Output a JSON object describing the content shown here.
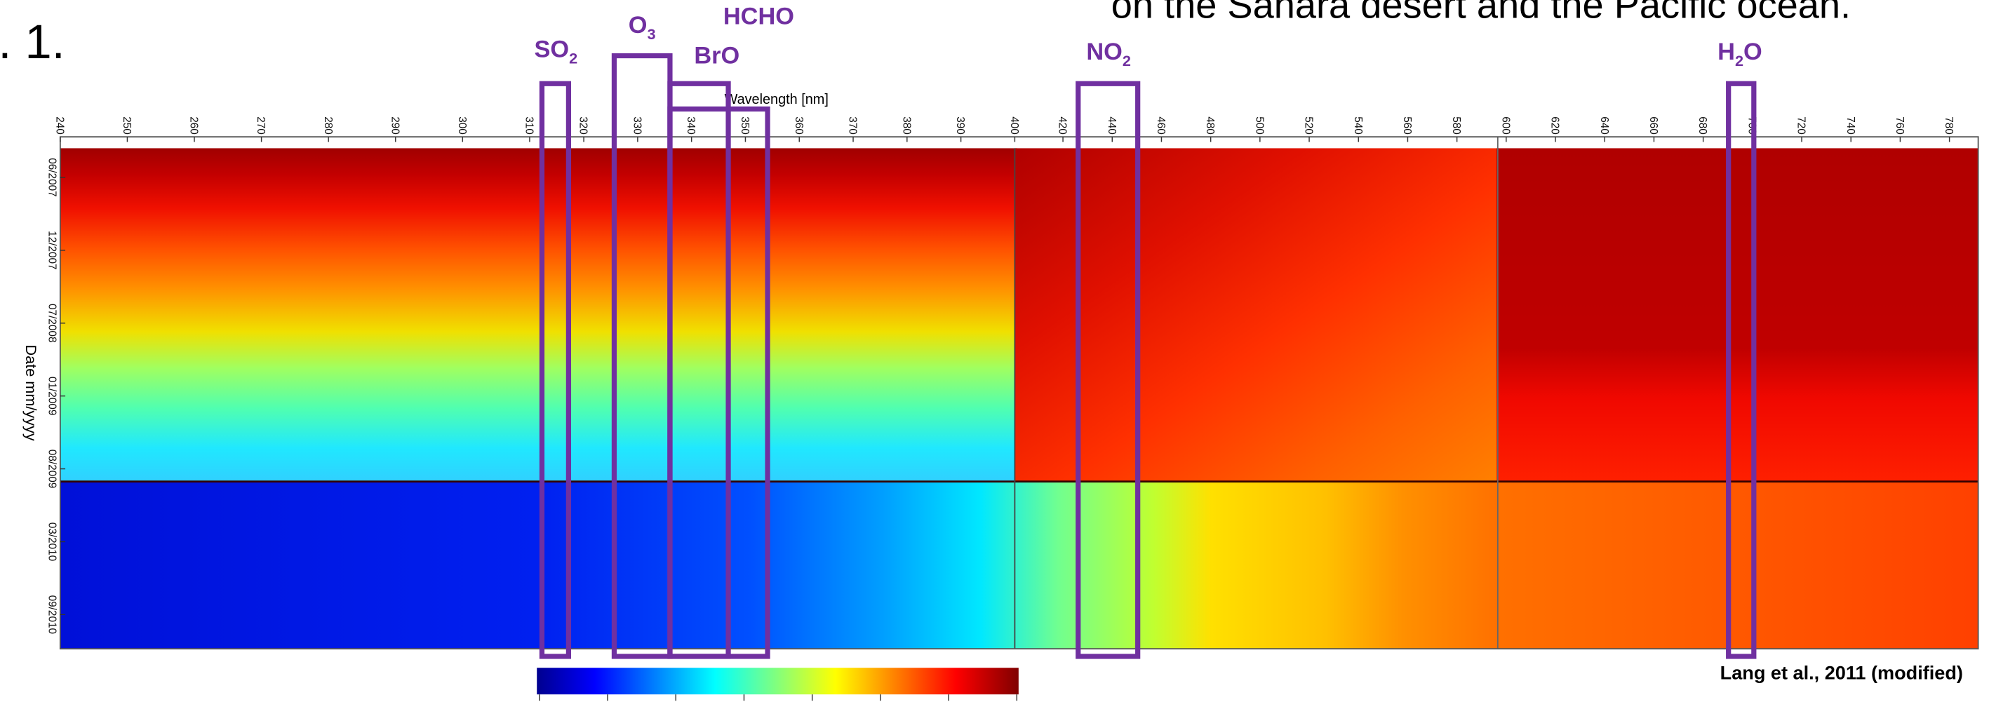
{
  "header": {
    "figure_label": ". 1.",
    "caption_fragment": "on the Sahara desert and the Pacific ocean."
  },
  "figure": {
    "x_axis_label": "Wavelength [nm]",
    "x_tick_groups": [
      [
        240,
        250,
        260,
        270,
        280,
        290,
        300,
        310
      ],
      [
        320,
        330,
        340,
        350,
        360,
        370,
        380,
        390,
        400
      ],
      [
        420,
        440,
        460,
        480,
        500,
        520,
        540,
        560,
        580,
        600,
        620,
        640,
        660,
        680,
        700,
        720,
        740,
        760,
        780
      ]
    ],
    "y_axis_label": "Date mm/yyyy",
    "y_tick_labels": [
      "06/2007",
      "12/2007",
      "07/2008",
      "01/2009",
      "08/2009",
      "03/2010",
      "09/2010"
    ],
    "absorbers": [
      {
        "name": "SO",
        "sub": "2"
      },
      {
        "name": "O",
        "sub": "3"
      },
      {
        "name": "HCHO"
      },
      {
        "name": "BrO"
      },
      {
        "name": "NO",
        "sub": "2"
      },
      {
        "name": "H",
        "sub": "2",
        "suffix": "O"
      }
    ],
    "credit": "Lang et al., 2011 (modified)"
  }
}
